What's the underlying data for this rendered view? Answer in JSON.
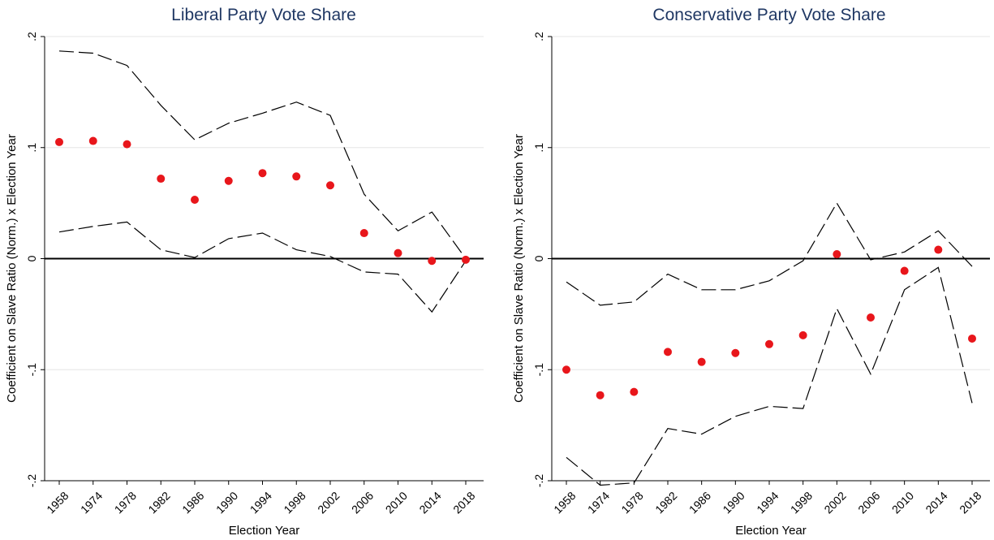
{
  "chart_data": [
    {
      "type": "scatter",
      "title": "Liberal Party Vote Share",
      "xlabel": "Election Year",
      "ylabel": "Coefficient on Slave Ratio (Norm.)  x Election Year",
      "categories": [
        "1958",
        "1974",
        "1978",
        "1982",
        "1986",
        "1990",
        "1994",
        "1998",
        "2002",
        "2006",
        "2010",
        "2014",
        "2018"
      ],
      "ylim": [
        -0.2,
        0.2
      ],
      "yticks": [
        {
          "value": 0.2,
          "label": ".2"
        },
        {
          "value": 0.1,
          "label": ".1"
        },
        {
          "value": 0,
          "label": "0"
        },
        {
          "value": -0.1,
          "label": "-.1"
        },
        {
          "value": -0.2,
          "label": "-.2"
        }
      ],
      "reference_line": 0,
      "grid": true,
      "series": [
        {
          "role": "estimate",
          "values": [
            0.105,
            0.106,
            0.103,
            0.072,
            0.053,
            0.07,
            0.077,
            0.074,
            0.066,
            0.023,
            0.005,
            -0.002,
            -0.001
          ],
          "color": "#e8161b",
          "style": "marker"
        },
        {
          "role": "upper-ci",
          "values": [
            0.187,
            0.185,
            0.174,
            0.138,
            0.107,
            0.122,
            0.131,
            0.141,
            0.129,
            0.058,
            0.025,
            0.042,
            0.0
          ],
          "color": "#000000",
          "style": "dashed"
        },
        {
          "role": "lower-ci",
          "values": [
            0.024,
            0.029,
            0.033,
            0.008,
            0.001,
            0.018,
            0.023,
            0.008,
            0.002,
            -0.012,
            -0.014,
            -0.048,
            -0.002
          ],
          "color": "#000000",
          "style": "dashed"
        }
      ]
    },
    {
      "type": "scatter",
      "title": "Conservative Party Vote Share",
      "xlabel": "Election Year",
      "ylabel": "Coefficient on Slave Ratio (Norm.)  x Election Year",
      "categories": [
        "1958",
        "1974",
        "1978",
        "1982",
        "1986",
        "1990",
        "1994",
        "1998",
        "2002",
        "2006",
        "2010",
        "2014",
        "2018"
      ],
      "ylim": [
        -0.2,
        0.2
      ],
      "yticks": [
        {
          "value": 0.2,
          "label": ".2"
        },
        {
          "value": 0.1,
          "label": ".1"
        },
        {
          "value": 0,
          "label": "0"
        },
        {
          "value": -0.1,
          "label": "-.1"
        },
        {
          "value": -0.2,
          "label": "-.2"
        }
      ],
      "reference_line": 0,
      "grid": true,
      "series": [
        {
          "role": "estimate",
          "values": [
            -0.1,
            -0.123,
            -0.12,
            -0.084,
            -0.093,
            -0.085,
            -0.077,
            -0.069,
            0.004,
            -0.053,
            -0.011,
            0.008,
            -0.072
          ],
          "color": "#e8161b",
          "style": "marker"
        },
        {
          "role": "upper-ci",
          "values": [
            -0.021,
            -0.042,
            -0.039,
            -0.014,
            -0.028,
            -0.028,
            -0.02,
            -0.002,
            0.05,
            -0.001,
            0.006,
            0.025,
            -0.007
          ],
          "color": "#000000",
          "style": "dashed"
        },
        {
          "role": "lower-ci",
          "values": [
            -0.179,
            -0.204,
            -0.202,
            -0.153,
            -0.158,
            -0.142,
            -0.133,
            -0.135,
            -0.045,
            -0.104,
            -0.028,
            -0.008,
            -0.13
          ],
          "color": "#000000",
          "style": "dashed"
        }
      ]
    }
  ]
}
